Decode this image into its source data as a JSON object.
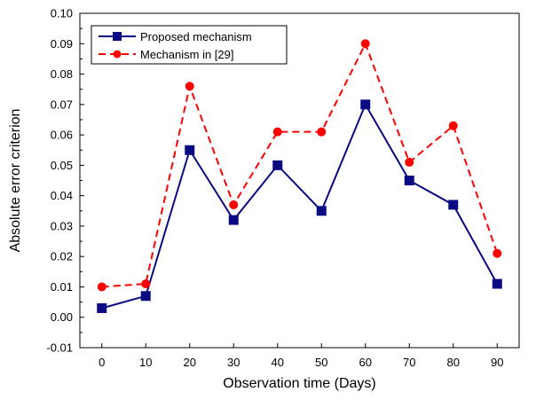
{
  "chart_data": {
    "type": "line",
    "xlabel": "Observation time (Days)",
    "ylabel": "Absolute error criterion",
    "x": [
      0,
      10,
      20,
      30,
      40,
      50,
      60,
      70,
      80,
      90
    ],
    "xlim": [
      -5,
      95
    ],
    "ylim": [
      -0.01,
      0.1
    ],
    "x_ticks": [
      "0",
      "10",
      "20",
      "30",
      "40",
      "50",
      "60",
      "70",
      "80",
      "90"
    ],
    "y_ticks": [
      "-0.01",
      "0.00",
      "0.01",
      "0.02",
      "0.03",
      "0.04",
      "0.05",
      "0.06",
      "0.07",
      "0.08",
      "0.09",
      "0.10"
    ],
    "grid": false,
    "legend_position": "top-left",
    "series": [
      {
        "name": "Proposed mechanism",
        "values": [
          0.003,
          0.007,
          0.055,
          0.032,
          0.05,
          0.035,
          0.07,
          0.045,
          0.037,
          0.011
        ],
        "color": "#0a0a82",
        "line_style": "solid",
        "marker": "square"
      },
      {
        "name": "Mechanism in [29]",
        "values": [
          0.01,
          0.011,
          0.076,
          0.037,
          0.061,
          0.061,
          0.09,
          0.051,
          0.063,
          0.021
        ],
        "color": "#ff0000",
        "line_style": "dashed",
        "marker": "circle"
      }
    ]
  }
}
